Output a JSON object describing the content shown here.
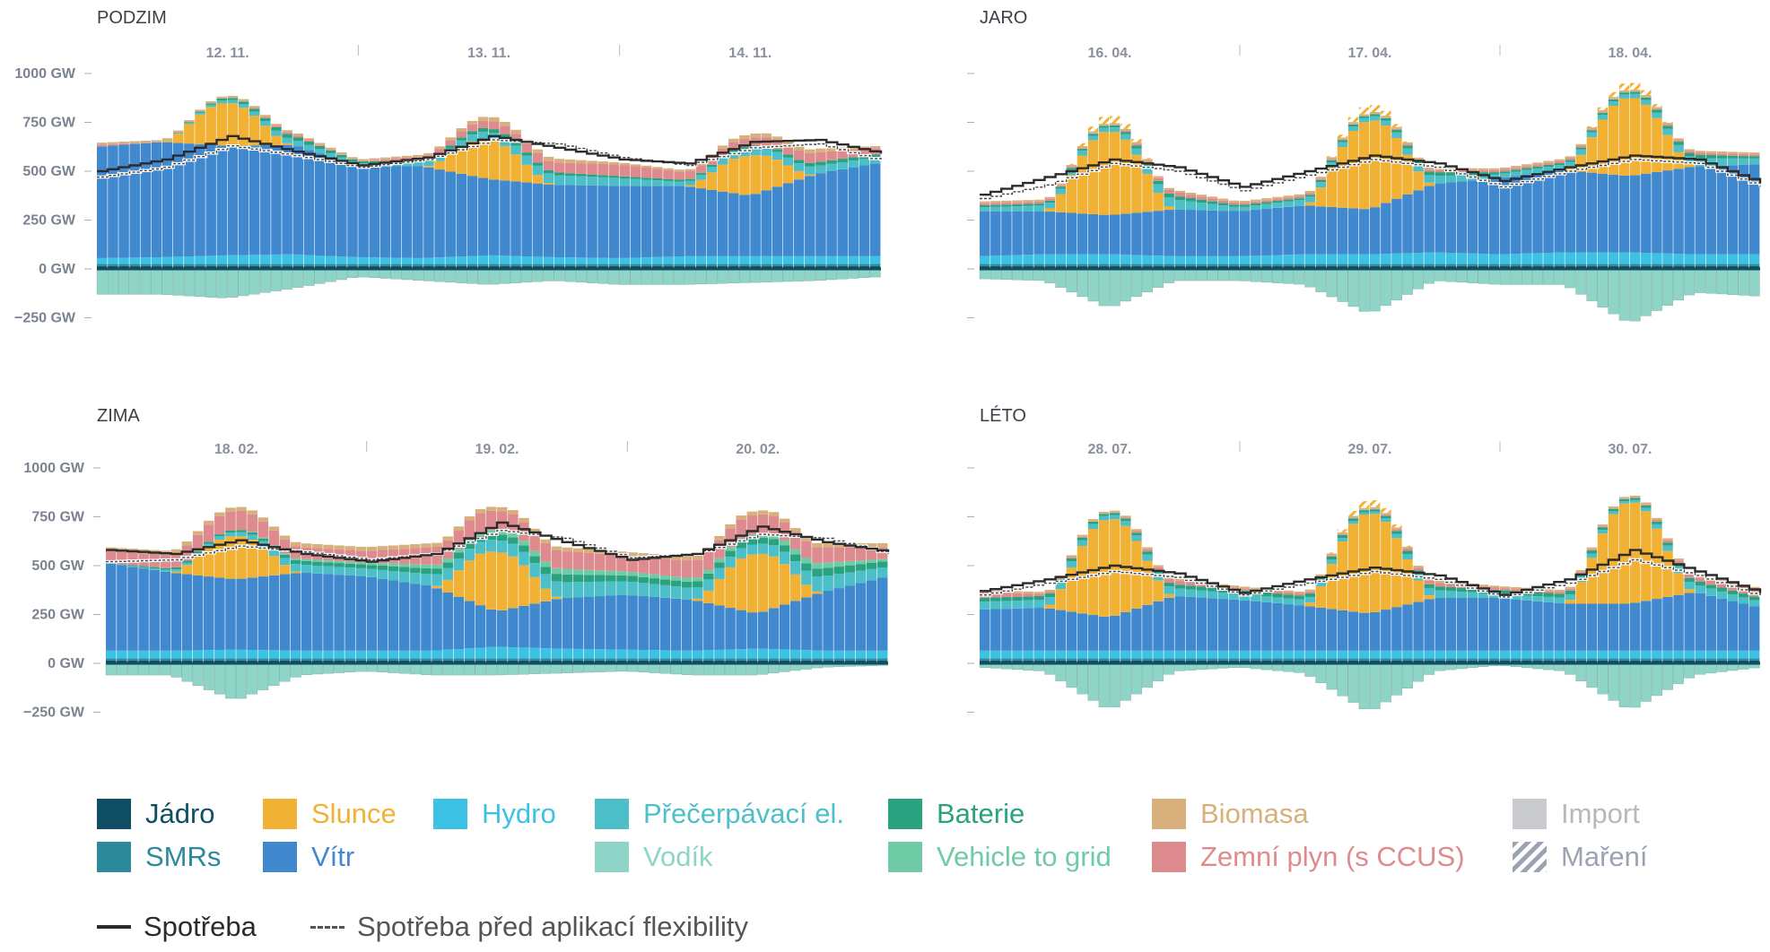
{
  "legend": {
    "items": [
      {
        "key": "jadro",
        "label": "Jádro",
        "color": "#0f4e63"
      },
      {
        "key": "smrs",
        "label": "SMRs",
        "color": "#2c8a9b"
      },
      {
        "key": "slunce",
        "label": "Slunce",
        "color": "#f1b134"
      },
      {
        "key": "vitr",
        "label": "Vítr",
        "color": "#4189cf"
      },
      {
        "key": "hydro",
        "label": "Hydro",
        "color": "#3ec2e4"
      },
      {
        "key": "precerpavaci",
        "label": "Přečerpávací el.",
        "color": "#4dbfc9"
      },
      {
        "key": "vodik",
        "label": "Vodík",
        "color": "#8fd5c7"
      },
      {
        "key": "baterie",
        "label": "Baterie",
        "color": "#2aa27f"
      },
      {
        "key": "v2g",
        "label": "Vehicle to grid",
        "color": "#6fcba5"
      },
      {
        "key": "biomasa",
        "label": "Biomasa",
        "color": "#d7b07c"
      },
      {
        "key": "plyn",
        "label": "Zemní plyn (s CCUS)",
        "color": "#de8b8f"
      },
      {
        "key": "import",
        "label": "Import",
        "color": "#c9cbce"
      },
      {
        "key": "mareni",
        "label": "Maření",
        "color": "#9aa3b2"
      }
    ],
    "spotreba": "Spotřeba",
    "spotreba_pred": "Spotřeba před aplikací flexibility"
  },
  "chart_data": [
    {
      "panel": "PODZIM",
      "type": "area",
      "days": [
        "12. 11.",
        "13. 11.",
        "14. 11."
      ],
      "yticks": [
        "1000 GW",
        "750 GW",
        "500 GW",
        "250 GW",
        "0 GW",
        "−250 GW"
      ],
      "ylim": [
        -300,
        1000
      ],
      "x_hours": [
        0,
        6,
        12,
        18,
        24,
        30,
        36,
        42,
        48,
        54,
        60,
        66,
        72
      ],
      "series": [
        {
          "key": "jadro",
          "values": [
            15,
            15,
            15,
            15,
            15,
            15,
            15,
            15,
            15,
            15,
            15,
            15,
            15
          ]
        },
        {
          "key": "smrs",
          "values": [
            10,
            10,
            10,
            10,
            10,
            10,
            10,
            10,
            10,
            10,
            10,
            10,
            10
          ]
        },
        {
          "key": "hydro",
          "values": [
            30,
            35,
            45,
            50,
            35,
            30,
            45,
            35,
            30,
            40,
            40,
            40,
            40
          ]
        },
        {
          "key": "vitr",
          "values": [
            570,
            590,
            560,
            560,
            470,
            470,
            390,
            370,
            370,
            360,
            310,
            420,
            480
          ]
        },
        {
          "key": "slunce",
          "values": [
            0,
            10,
            220,
            0,
            0,
            0,
            200,
            0,
            0,
            0,
            200,
            0,
            0
          ]
        },
        {
          "key": "precerpavaci",
          "values": [
            0,
            0,
            15,
            30,
            10,
            20,
            40,
            50,
            40,
            20,
            40,
            40,
            30
          ]
        },
        {
          "key": "baterie",
          "values": [
            0,
            0,
            10,
            20,
            10,
            10,
            20,
            15,
            10,
            10,
            10,
            20,
            15
          ]
        },
        {
          "key": "plyn",
          "values": [
            10,
            0,
            0,
            10,
            0,
            20,
            40,
            50,
            60,
            40,
            40,
            50,
            30
          ]
        },
        {
          "key": "biomasa",
          "values": [
            10,
            10,
            10,
            10,
            10,
            10,
            20,
            20,
            10,
            10,
            20,
            20,
            10
          ]
        }
      ],
      "negative": [
        -130,
        -130,
        -150,
        -100,
        -40,
        -60,
        -80,
        -60,
        -80,
        -80,
        -70,
        -60,
        -40
      ],
      "spotreba": [
        500,
        560,
        680,
        600,
        530,
        570,
        680,
        620,
        560,
        540,
        650,
        660,
        590
      ],
      "spotreba_pred": [
        470,
        520,
        630,
        580,
        520,
        560,
        660,
        640,
        570,
        530,
        620,
        640,
        550
      ]
    },
    {
      "panel": "JARO",
      "type": "area",
      "days": [
        "16. 04.",
        "17. 04.",
        "18. 04."
      ],
      "ylim": [
        -300,
        1000
      ],
      "x_hours": [
        0,
        6,
        12,
        18,
        24,
        30,
        36,
        42,
        48,
        54,
        60,
        66,
        72
      ],
      "series": [
        {
          "key": "jadro",
          "values": [
            15,
            15,
            15,
            15,
            15,
            15,
            15,
            15,
            15,
            15,
            15,
            15,
            15
          ]
        },
        {
          "key": "smrs",
          "values": [
            10,
            10,
            10,
            10,
            10,
            10,
            10,
            10,
            10,
            10,
            10,
            10,
            10
          ]
        },
        {
          "key": "hydro",
          "values": [
            40,
            50,
            50,
            40,
            40,
            50,
            50,
            60,
            50,
            60,
            60,
            50,
            50
          ]
        },
        {
          "key": "vitr",
          "values": [
            230,
            220,
            200,
            240,
            230,
            250,
            230,
            350,
            390,
            420,
            390,
            450,
            460
          ]
        },
        {
          "key": "slunce",
          "values": [
            0,
            80,
            430,
            0,
            0,
            60,
            450,
            0,
            0,
            80,
            400,
            0,
            0
          ]
        },
        {
          "key": "precerpavaci",
          "values": [
            20,
            30,
            20,
            50,
            20,
            30,
            20,
            40,
            20,
            30,
            20,
            40,
            30
          ]
        },
        {
          "key": "baterie",
          "values": [
            10,
            10,
            10,
            20,
            10,
            10,
            10,
            20,
            10,
            10,
            10,
            20,
            10
          ]
        },
        {
          "key": "plyn",
          "values": [
            10,
            10,
            0,
            20,
            10,
            10,
            0,
            10,
            10,
            10,
            0,
            10,
            10
          ]
        },
        {
          "key": "biomasa",
          "values": [
            10,
            10,
            10,
            10,
            10,
            10,
            10,
            10,
            10,
            10,
            10,
            10,
            10
          ]
        }
      ],
      "mareni_tops": [
        [
          2,
          790
        ],
        [
          6,
          840
        ],
        [
          10,
          890
        ]
      ],
      "negative": [
        -50,
        -60,
        -200,
        -60,
        -60,
        -80,
        -230,
        -60,
        -80,
        -80,
        -280,
        -120,
        -140
      ],
      "spotreba": [
        380,
        470,
        560,
        520,
        420,
        500,
        580,
        540,
        450,
        520,
        580,
        560,
        440
      ],
      "spotreba_pred": [
        360,
        430,
        540,
        500,
        400,
        480,
        560,
        520,
        420,
        500,
        560,
        540,
        420
      ]
    },
    {
      "panel": "ZIMA",
      "type": "area",
      "days": [
        "18. 02.",
        "19. 02.",
        "20. 02."
      ],
      "ylim": [
        -300,
        1000
      ],
      "x_hours": [
        0,
        6,
        12,
        18,
        24,
        30,
        36,
        42,
        48,
        54,
        60,
        66,
        72
      ],
      "series": [
        {
          "key": "jadro",
          "values": [
            15,
            15,
            15,
            15,
            15,
            15,
            15,
            15,
            15,
            15,
            15,
            15,
            15
          ]
        },
        {
          "key": "smrs",
          "values": [
            10,
            10,
            10,
            10,
            10,
            10,
            10,
            10,
            10,
            10,
            10,
            10,
            10
          ]
        },
        {
          "key": "hydro",
          "values": [
            40,
            40,
            45,
            40,
            40,
            40,
            60,
            50,
            45,
            40,
            50,
            40,
            40
          ]
        },
        {
          "key": "vitr",
          "values": [
            450,
            400,
            360,
            400,
            380,
            330,
            180,
            260,
            280,
            260,
            180,
            300,
            380
          ]
        },
        {
          "key": "slunce",
          "values": [
            0,
            60,
            220,
            0,
            0,
            80,
            300,
            0,
            0,
            60,
            300,
            0,
            0
          ]
        },
        {
          "key": "precerpavaci",
          "values": [
            0,
            10,
            20,
            40,
            40,
            60,
            60,
            80,
            70,
            60,
            50,
            80,
            50
          ]
        },
        {
          "key": "baterie",
          "values": [
            0,
            10,
            10,
            20,
            20,
            30,
            30,
            40,
            30,
            30,
            30,
            40,
            30
          ]
        },
        {
          "key": "v2g",
          "values": [
            0,
            0,
            0,
            10,
            10,
            20,
            20,
            30,
            20,
            20,
            20,
            30,
            10
          ]
        },
        {
          "key": "plyn",
          "values": [
            60,
            70,
            100,
            60,
            60,
            90,
            100,
            90,
            80,
            90,
            100,
            80,
            60
          ]
        },
        {
          "key": "biomasa",
          "values": [
            20,
            20,
            20,
            20,
            20,
            20,
            20,
            20,
            20,
            20,
            20,
            20,
            20
          ]
        }
      ],
      "negative": [
        -60,
        -60,
        -190,
        -60,
        -40,
        -60,
        -60,
        -50,
        -40,
        -60,
        -60,
        -20,
        -10
      ],
      "spotreba": [
        580,
        560,
        630,
        560,
        520,
        560,
        720,
        620,
        530,
        560,
        700,
        620,
        570
      ],
      "spotreba_pred": [
        520,
        530,
        600,
        570,
        530,
        560,
        680,
        640,
        540,
        560,
        660,
        640,
        560
      ]
    },
    {
      "panel": "LÉTO",
      "type": "area",
      "days": [
        "28. 07.",
        "29. 07.",
        "30. 07."
      ],
      "ylim": [
        -300,
        1000
      ],
      "x_hours": [
        0,
        6,
        12,
        18,
        24,
        30,
        36,
        42,
        48,
        54,
        60,
        66,
        72
      ],
      "series": [
        {
          "key": "jadro",
          "values": [
            15,
            15,
            15,
            15,
            15,
            15,
            15,
            15,
            15,
            15,
            15,
            15,
            15
          ]
        },
        {
          "key": "smrs",
          "values": [
            10,
            10,
            10,
            10,
            10,
            10,
            10,
            10,
            10,
            10,
            10,
            10,
            10
          ]
        },
        {
          "key": "hydro",
          "values": [
            40,
            40,
            40,
            40,
            40,
            40,
            40,
            40,
            40,
            40,
            40,
            40,
            40
          ]
        },
        {
          "key": "vitr",
          "values": [
            210,
            220,
            170,
            280,
            260,
            230,
            190,
            270,
            270,
            240,
            240,
            300,
            220
          ]
        },
        {
          "key": "slunce",
          "values": [
            0,
            60,
            500,
            0,
            0,
            60,
            510,
            0,
            0,
            60,
            520,
            0,
            0
          ]
        },
        {
          "key": "precerpavaci",
          "values": [
            40,
            40,
            20,
            40,
            30,
            30,
            10,
            40,
            20,
            30,
            10,
            40,
            30
          ]
        },
        {
          "key": "baterie",
          "values": [
            20,
            20,
            10,
            20,
            20,
            20,
            10,
            20,
            20,
            20,
            10,
            20,
            20
          ]
        },
        {
          "key": "plyn",
          "values": [
            30,
            10,
            0,
            20,
            10,
            10,
            0,
            20,
            10,
            10,
            0,
            20,
            40
          ]
        },
        {
          "key": "biomasa",
          "values": [
            10,
            10,
            10,
            10,
            10,
            10,
            10,
            10,
            10,
            10,
            10,
            10,
            10
          ]
        }
      ],
      "mareni_tops": [
        [
          6,
          810
        ]
      ],
      "negative": [
        -20,
        -40,
        -240,
        -40,
        -20,
        -50,
        -250,
        -40,
        -10,
        -40,
        -240,
        -60,
        -20
      ],
      "spotreba": [
        370,
        430,
        500,
        460,
        360,
        430,
        490,
        450,
        350,
        430,
        580,
        470,
        360
      ],
      "spotreba_pred": [
        350,
        410,
        470,
        440,
        350,
        410,
        470,
        430,
        340,
        410,
        530,
        450,
        340
      ]
    }
  ]
}
